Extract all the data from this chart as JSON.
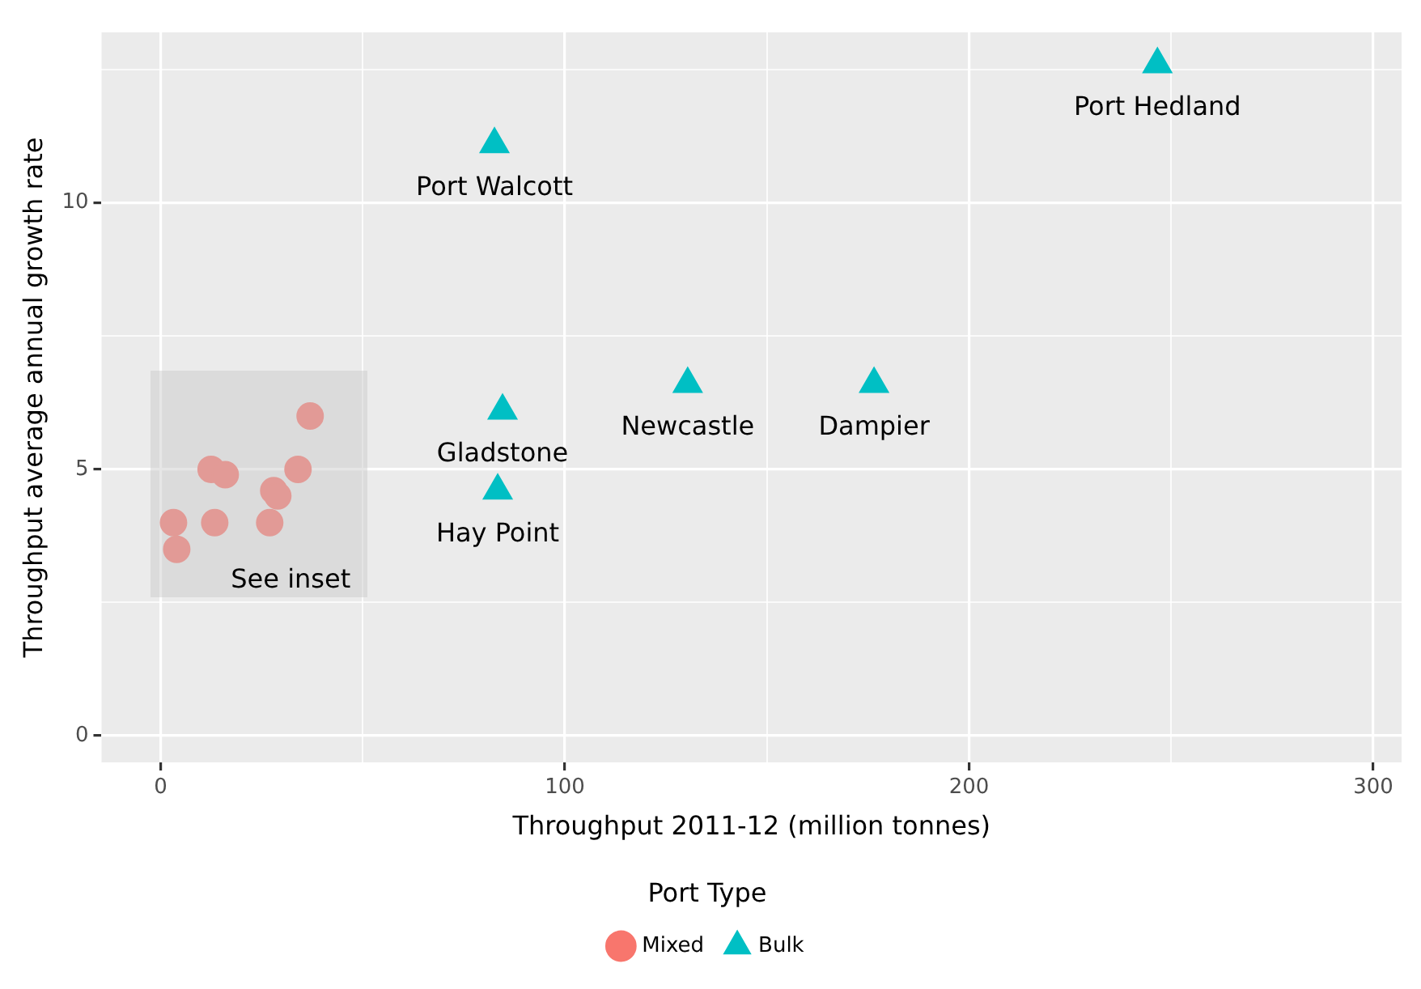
{
  "chart_data": {
    "type": "scatter",
    "xlabel": "Throughput 2011-12 (million tonnes)",
    "ylabel": "Throughput average annual growth rate",
    "legend_title": "Port Type",
    "legend": "bottom",
    "grid": true,
    "xlim": [
      -14.6,
      307
    ],
    "ylim": [
      -0.5,
      13.2
    ],
    "xticks": [
      0,
      {
        "value": 50,
        "label": null
      },
      100,
      {
        "value": 150,
        "label": null
      },
      200,
      {
        "value": 250,
        "label": null
      },
      300
    ],
    "yticks": [
      0,
      {
        "value": 2.5,
        "label": null
      },
      5,
      {
        "value": 7.5,
        "label": null
      },
      10,
      {
        "value": 12.5,
        "label": null
      }
    ],
    "series": [
      {
        "name": "Mixed",
        "color": "#f8766d",
        "marker": "circle",
        "x": [
          3.2,
          4,
          12.5,
          16,
          13.4,
          28,
          29,
          27,
          34,
          37
        ],
        "values": [
          4.0,
          3.5,
          5.0,
          4.9,
          4.0,
          4.6,
          4.5,
          4.0,
          5.0,
          6.0
        ]
      },
      {
        "name": "Bulk",
        "color": "#00bfc4",
        "marker": "triangle",
        "x": [
          246.6,
          82.6,
          84.6,
          83.4,
          130.4,
          176.5
        ],
        "values": [
          12.6,
          11.1,
          6.1,
          4.6,
          6.6,
          6.6
        ]
      }
    ],
    "annotations": [
      {
        "text": "Port Hedland",
        "x": 246.6,
        "y": 12.6
      },
      {
        "text": "Port Walcott",
        "x": 82.6,
        "y": 11.1
      },
      {
        "text": "Gladstone",
        "x": 84.6,
        "y": 6.1
      },
      {
        "text": "Hay Point",
        "x": 83.4,
        "y": 4.6
      },
      {
        "text": "Newcastle",
        "x": 130.4,
        "y": 6.6
      },
      {
        "text": "Dampier",
        "x": 176.5,
        "y": 6.6
      },
      "See inset"
    ]
  }
}
